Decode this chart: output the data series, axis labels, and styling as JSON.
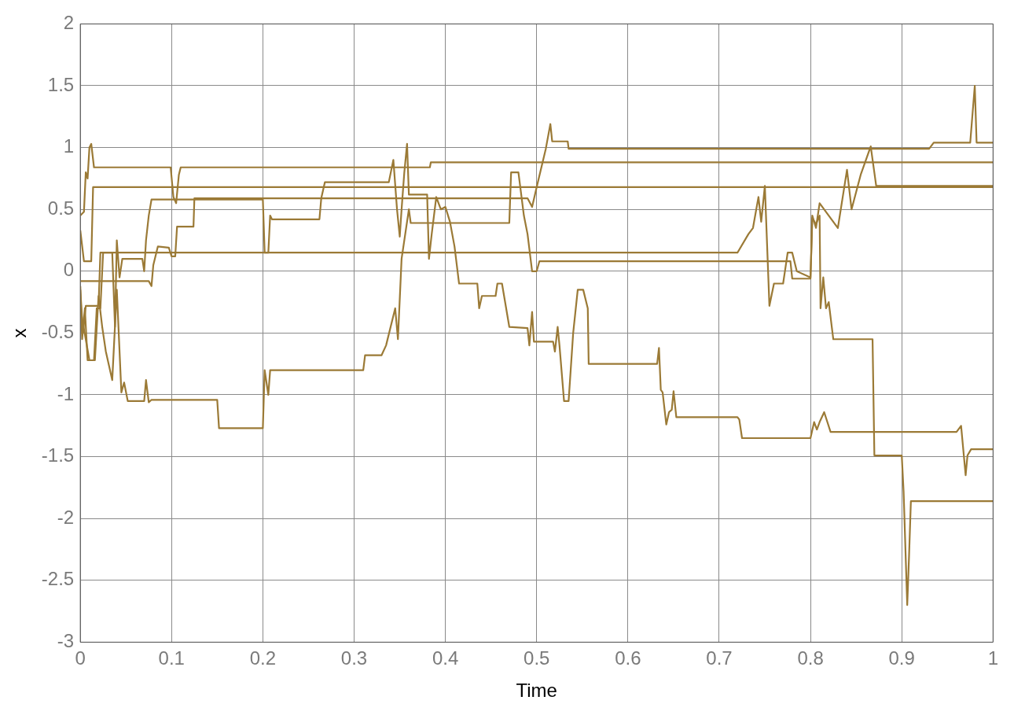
{
  "chart_data": {
    "type": "line",
    "xlabel": "Time",
    "ylabel": "x",
    "xlim": [
      0,
      1
    ],
    "ylim": [
      -3,
      2
    ],
    "xticks": [
      0,
      0.1,
      0.2,
      0.3,
      0.4,
      0.5,
      0.6,
      0.7,
      0.8,
      0.9,
      1
    ],
    "yticks": [
      -3,
      -2.5,
      -2,
      -1.5,
      -1,
      -0.5,
      0,
      0.5,
      1,
      1.5,
      2
    ],
    "grid": true,
    "legend": false,
    "series": [
      {
        "color": "#9b7a36",
        "x": [
          0,
          0.075,
          0.078,
          0.08,
          0.085,
          0.097,
          0.1,
          0.104,
          0.106,
          0.124,
          0.125,
          0.49,
          0.495,
          0.5,
          0.51,
          0.515,
          0.517,
          0.534,
          0.535,
          0.93,
          0.935,
          0.975,
          0.98,
          0.982,
          1
        ],
        "values": [
          -0.08,
          -0.08,
          -0.12,
          0.05,
          0.2,
          0.19,
          0.12,
          0.12,
          0.36,
          0.36,
          0.59,
          0.59,
          0.52,
          0.68,
          0.99,
          1.19,
          1.05,
          1.05,
          0.99,
          0.99,
          1.04,
          1.04,
          1.5,
          1.04,
          1.04
        ]
      },
      {
        "color": "#9b7a36",
        "x": [
          0,
          0.004,
          0.006,
          0.008,
          0.01,
          0.012,
          0.015,
          0.099,
          0.102,
          0.105,
          0.108,
          0.11,
          0.383,
          0.384,
          1
        ],
        "values": [
          0.45,
          0.48,
          0.8,
          0.75,
          1,
          1.03,
          0.84,
          0.84,
          0.6,
          0.55,
          0.78,
          0.84,
          0.84,
          0.88,
          0.88
        ]
      },
      {
        "color": "#9b7a36",
        "x": [
          0,
          0.004,
          0.012,
          0.014,
          1
        ],
        "values": [
          0.33,
          0.08,
          0.08,
          0.68,
          0.68
        ]
      },
      {
        "color": "#9b7a36",
        "x": [
          0,
          0.002,
          0.005,
          0.008,
          0.015,
          0.018,
          0.022,
          0.025,
          0.72,
          0.732,
          0.737,
          0.743,
          0.746,
          0.75,
          0.755,
          0.76,
          0.77,
          0.772,
          0.775,
          0.78,
          0.785,
          0.8,
          0.802,
          0.806,
          0.81,
          0.83,
          0.84,
          0.845,
          0.855,
          0.866,
          0.872,
          1
        ],
        "values": [
          -0.12,
          -0.55,
          -0.3,
          -0.72,
          -0.72,
          -0.3,
          -0.3,
          0.15,
          0.15,
          0.3,
          0.35,
          0.6,
          0.4,
          0.69,
          -0.28,
          -0.1,
          -0.1,
          0,
          0.15,
          0.15,
          0,
          -0.05,
          0.45,
          0.35,
          0.55,
          0.35,
          0.82,
          0.5,
          0.78,
          1.01,
          0.69,
          0.69
        ]
      },
      {
        "color": "#9b7a36",
        "x": [
          0,
          0.01,
          0.016,
          0.02,
          0.024,
          0.028,
          0.035,
          0.04,
          0.045,
          0.048,
          0.052,
          0.07,
          0.072,
          0.075,
          0.078,
          0.15,
          0.152,
          0.2,
          0.202,
          0.206,
          0.208,
          0.31,
          0.312,
          0.33,
          0.335,
          0.345,
          0.348,
          0.352,
          0.36,
          0.362,
          0.39,
          0.47,
          0.472,
          0.48,
          0.486,
          0.49,
          0.495,
          0.5,
          0.503,
          0.778,
          0.78,
          0.8,
          0.802,
          0.806,
          0.81,
          0.811,
          0.814,
          0.817,
          0.82,
          0.825,
          0.868,
          0.87,
          0.9,
          0.902,
          0.906,
          0.908,
          0.91,
          1
        ],
        "values": [
          -0.3,
          -0.72,
          -0.72,
          -0.2,
          -0.45,
          -0.65,
          -0.88,
          -0.15,
          -0.98,
          -0.9,
          -1.05,
          -1.05,
          -0.88,
          -1.06,
          -1.04,
          -1.04,
          -1.27,
          -1.27,
          -0.8,
          -1,
          -0.8,
          -0.8,
          -0.68,
          -0.68,
          -0.6,
          -0.3,
          -0.55,
          0.1,
          0.5,
          0.39,
          0.39,
          0.39,
          0.8,
          0.8,
          0.45,
          0.3,
          0,
          0,
          0.08,
          0.08,
          -0.06,
          -0.06,
          0.43,
          0.38,
          0.45,
          -0.3,
          -0.05,
          -0.3,
          -0.25,
          -0.55,
          -0.55,
          -1.49,
          -1.49,
          -1.78,
          -2.7,
          -2.3,
          -1.86,
          -1.86
        ]
      },
      {
        "color": "#9b7a36",
        "x": [
          0,
          0.003,
          0.006,
          0.02,
          0.022,
          0.035,
          0.038,
          0.04,
          0.043,
          0.046,
          0.068,
          0.07,
          0.072,
          0.075,
          0.078,
          0.2,
          0.202,
          0.206,
          0.208,
          0.21,
          0.262,
          0.264,
          0.268,
          0.338,
          0.343,
          0.347,
          0.35,
          0.352,
          0.355,
          0.358,
          0.36,
          0.38,
          0.382,
          0.385,
          0.39,
          0.395,
          0.4,
          0.405,
          0.41,
          0.415,
          0.435,
          0.437,
          0.44,
          0.455,
          0.457,
          0.462,
          0.47,
          0.49,
          0.492,
          0.495,
          0.497,
          0.518,
          0.52,
          0.523,
          0.525,
          0.53,
          0.535,
          0.54,
          0.545,
          0.551,
          0.556,
          0.557,
          0.632,
          0.634,
          0.636,
          0.638,
          0.642,
          0.645,
          0.648,
          0.65,
          0.653,
          0.72,
          0.722,
          0.725,
          0.8,
          0.804,
          0.807,
          0.81,
          0.815,
          0.822,
          0.96,
          0.965,
          0.97,
          0.972,
          0.976,
          1
        ],
        "values": [
          -0.15,
          -0.5,
          -0.28,
          -0.28,
          0.15,
          0.15,
          -0.45,
          0.25,
          -0.05,
          0.1,
          0.1,
          0,
          0.25,
          0.45,
          0.58,
          0.58,
          0.15,
          0.15,
          0.45,
          0.42,
          0.42,
          0.59,
          0.72,
          0.72,
          0.9,
          0.5,
          0.28,
          0.5,
          0.8,
          1.03,
          0.62,
          0.62,
          0.1,
          0.3,
          0.6,
          0.5,
          0.52,
          0.4,
          0.2,
          -0.1,
          -0.1,
          -0.3,
          -0.2,
          -0.2,
          -0.1,
          -0.1,
          -0.45,
          -0.46,
          -0.6,
          -0.33,
          -0.57,
          -0.57,
          -0.65,
          -0.45,
          -0.6,
          -1.05,
          -1.05,
          -0.5,
          -0.15,
          -0.15,
          -0.3,
          -0.75,
          -0.75,
          -0.62,
          -0.96,
          -0.98,
          -1.24,
          -1.14,
          -1.12,
          -0.97,
          -1.18,
          -1.18,
          -1.2,
          -1.35,
          -1.35,
          -1.22,
          -1.28,
          -1.22,
          -1.14,
          -1.3,
          -1.3,
          -1.25,
          -1.65,
          -1.49,
          -1.44,
          -1.44
        ]
      }
    ]
  }
}
